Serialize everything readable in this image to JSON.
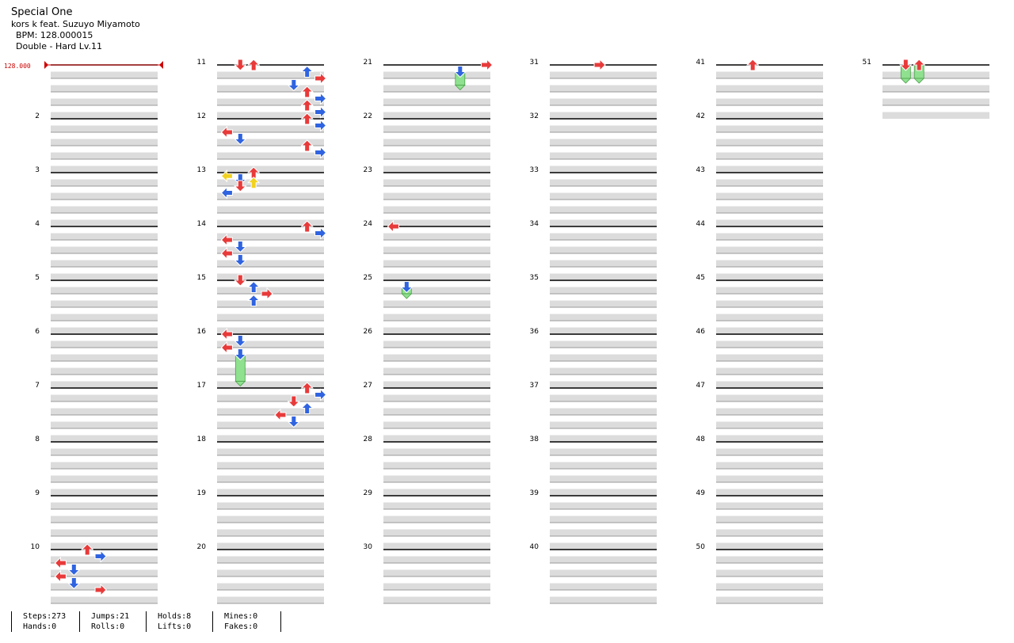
{
  "song": {
    "title": "Special One",
    "artist": "kors k feat. Suzuyo Miyamoto",
    "bpm_text": "BPM: 128.000015",
    "chart_info": "Double - Hard  Lv.11"
  },
  "bpm_marker": "128.000",
  "measure_numbers": [
    "2",
    "3",
    "4",
    "5",
    "6",
    "7",
    "8",
    "9",
    "10",
    "11",
    "12",
    "13",
    "14",
    "15",
    "16",
    "17",
    "18",
    "19",
    "20",
    "21",
    "22",
    "23",
    "24",
    "25",
    "26",
    "27",
    "28",
    "29",
    "30",
    "31",
    "32",
    "33",
    "34",
    "35",
    "36",
    "37",
    "38",
    "39",
    "40",
    "41",
    "42",
    "43",
    "44",
    "45",
    "46",
    "47",
    "48",
    "49",
    "50",
    "51"
  ],
  "stats": {
    "steps": "Steps:273",
    "hands": "Hands:0",
    "jumps": "Jumps:21",
    "rolls": "Rolls:0",
    "holds": "Holds:8",
    "lifts": "Lifts:0",
    "mines": "Mines:0",
    "fakes": "Fakes:0"
  },
  "colors": {
    "quarter": "#e83a3a",
    "eighth": "#2f63e0",
    "sixteenth": "#f2d21f",
    "hold": "#8fe08f",
    "measure_line": "#000000",
    "beat_band": "#dcdcdc",
    "bpm_marker": "#cc0000"
  },
  "icons": {
    "left": "arrow-left-icon",
    "down": "arrow-down-icon",
    "up": "arrow-up-icon",
    "right": "arrow-right-icon"
  },
  "chart_data": {
    "type": "step-chart",
    "lanes": [
      "P1-L",
      "P1-D",
      "P1-U",
      "P1-R",
      "P2-L",
      "P2-D",
      "P2-U",
      "P2-R"
    ],
    "measure_range": [
      1,
      51
    ],
    "bpm": 128.000015,
    "notes": [
      {
        "m": 10,
        "b": 0,
        "lane": 2,
        "div": 4
      },
      {
        "m": 10,
        "b": 0.5,
        "lane": 3,
        "div": 8
      },
      {
        "m": 10,
        "b": 1,
        "lane": 0,
        "div": 4
      },
      {
        "m": 10,
        "b": 1.5,
        "lane": 1,
        "div": 8
      },
      {
        "m": 10,
        "b": 2,
        "lane": 0,
        "div": 4
      },
      {
        "m": 10,
        "b": 2.5,
        "lane": 1,
        "div": 8
      },
      {
        "m": 10,
        "b": 3,
        "lane": 3,
        "div": 4
      },
      {
        "m": 11,
        "b": 0,
        "lane": 1,
        "div": 4
      },
      {
        "m": 11,
        "b": 0,
        "lane": 2,
        "div": 4
      },
      {
        "m": 11,
        "b": 0.5,
        "lane": 6,
        "div": 8
      },
      {
        "m": 11,
        "b": 1,
        "lane": 7,
        "div": 4
      },
      {
        "m": 11,
        "b": 1.5,
        "lane": 5,
        "div": 8
      },
      {
        "m": 11,
        "b": 2,
        "lane": 6,
        "div": 4
      },
      {
        "m": 11,
        "b": 2.5,
        "lane": 7,
        "div": 8
      },
      {
        "m": 11,
        "b": 3,
        "lane": 6,
        "div": 4
      },
      {
        "m": 11,
        "b": 3.5,
        "lane": 7,
        "div": 8
      },
      {
        "m": 12,
        "b": 0,
        "lane": 6,
        "div": 4
      },
      {
        "m": 12,
        "b": 0.5,
        "lane": 7,
        "div": 8
      },
      {
        "m": 12,
        "b": 1,
        "lane": 0,
        "div": 4
      },
      {
        "m": 12,
        "b": 1.5,
        "lane": 1,
        "div": 8
      },
      {
        "m": 12,
        "b": 2,
        "lane": 6,
        "div": 4
      },
      {
        "m": 12,
        "b": 2.5,
        "lane": 7,
        "div": 8
      },
      {
        "m": 13,
        "b": 0,
        "lane": 2,
        "div": 4
      },
      {
        "m": 13,
        "b": 0.25,
        "lane": 0,
        "div": 16
      },
      {
        "m": 13,
        "b": 0.5,
        "lane": 1,
        "div": 8
      },
      {
        "m": 13,
        "b": 0.75,
        "lane": 2,
        "div": 16
      },
      {
        "m": 13,
        "b": 1,
        "lane": 1,
        "div": 4
      },
      {
        "m": 13,
        "b": 1.5,
        "lane": 0,
        "div": 8
      },
      {
        "m": 14,
        "b": 0,
        "lane": 6,
        "div": 4
      },
      {
        "m": 14,
        "b": 0.5,
        "lane": 7,
        "div": 8
      },
      {
        "m": 14,
        "b": 1,
        "lane": 0,
        "div": 4
      },
      {
        "m": 14,
        "b": 1.5,
        "lane": 1,
        "div": 8
      },
      {
        "m": 14,
        "b": 2,
        "lane": 0,
        "div": 4
      },
      {
        "m": 14,
        "b": 2.5,
        "lane": 1,
        "div": 8
      },
      {
        "m": 15,
        "b": 0,
        "lane": 1,
        "div": 4
      },
      {
        "m": 15,
        "b": 0.5,
        "lane": 2,
        "div": 8
      },
      {
        "m": 15,
        "b": 1,
        "lane": 3,
        "div": 4
      },
      {
        "m": 15,
        "b": 1.5,
        "lane": 2,
        "div": 8
      },
      {
        "m": 16,
        "b": 0,
        "lane": 0,
        "div": 4
      },
      {
        "m": 16,
        "b": 0.5,
        "lane": 1,
        "div": 8
      },
      {
        "m": 16,
        "b": 1,
        "lane": 0,
        "div": 4
      },
      {
        "m": 16,
        "b": 1.5,
        "lane": 1,
        "div": 8,
        "hold": 2
      },
      {
        "m": 17,
        "b": 0,
        "lane": 6,
        "div": 4
      },
      {
        "m": 17,
        "b": 0.5,
        "lane": 7,
        "div": 8
      },
      {
        "m": 17,
        "b": 1,
        "lane": 5,
        "div": 4
      },
      {
        "m": 17,
        "b": 1.5,
        "lane": 6,
        "div": 8
      },
      {
        "m": 17,
        "b": 2,
        "lane": 4,
        "div": 4
      },
      {
        "m": 17,
        "b": 2.5,
        "lane": 5,
        "div": 8
      },
      {
        "m": 21,
        "b": 0,
        "lane": 7,
        "div": 4
      },
      {
        "m": 21,
        "b": 0.5,
        "lane": 5,
        "div": 8,
        "hold": 1
      },
      {
        "m": 24,
        "b": 0,
        "lane": 0,
        "div": 4
      },
      {
        "m": 25,
        "b": 0.5,
        "lane": 1,
        "div": 8,
        "hold": 0.5
      },
      {
        "m": 31,
        "b": 0,
        "lane": 3,
        "div": 4
      },
      {
        "m": 41,
        "b": 0,
        "lane": 2,
        "div": 4
      },
      {
        "m": 51,
        "b": 0,
        "lane": 1,
        "div": 4,
        "hold": 1
      },
      {
        "m": 51,
        "b": 0,
        "lane": 2,
        "div": 4,
        "hold": 1
      }
    ]
  }
}
